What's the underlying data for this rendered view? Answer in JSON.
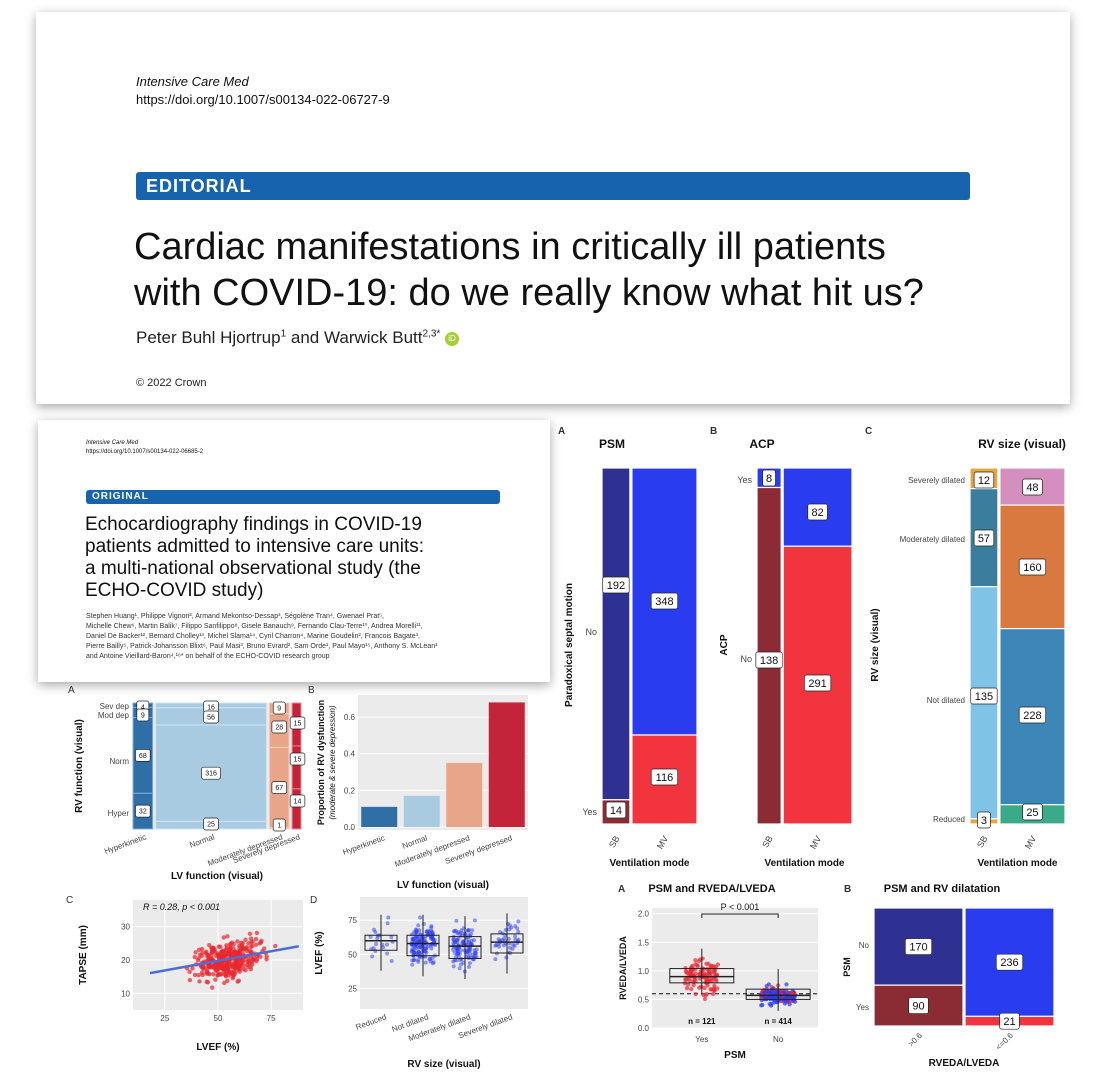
{
  "editorial": {
    "journal": "Intensive Care Med",
    "doi": "https://doi.org/10.1007/s00134-022-06727-9",
    "badge": "EDITORIAL",
    "title_line1": "Cardiac manifestations in critically ill patients",
    "title_line2": "with COVID-19: do we really know what hit us?",
    "author1": "Peter Buhl Hjortrup",
    "author1_sup": "1",
    "and": " and ",
    "author2": "Warwick Butt",
    "author2_sup": "2,3*",
    "copyright": "© 2022 Crown",
    "orcid_icon_text": "iD"
  },
  "original": {
    "journal": "Intensive Care Med",
    "doi": "https://doi.org/10.1007/s00134-022-06685-2",
    "badge": "ORIGINAL",
    "title_line1": "Echocardiography findings in COVID-19",
    "title_line2": "patients admitted to intensive care units:",
    "title_line3": "a multi-national observational study (the",
    "title_line4": "ECHO-COVID study)",
    "authors_line1": "Stephen Huang¹, Philippe Vignon², Armand Mekontso-Dessap³, Ségolène Tran⁴, Gwenael Prat⁵,",
    "authors_line2": "Michelle Chew⁶, Martin Balik⁷, Filippo Sanfilippo⁸, Gisele Banauch⁹, Fernando Clau-Terre¹⁰, Andrea Morelli¹¹,",
    "authors_line3": "Daniel De Backer¹², Bernard Cholley¹³, Michel Slama¹⁴, Cyril Charron⁴, Marine Goudelin², Francois Bagate³,",
    "authors_line4": "Pierre Bailly⁵, Patrick-Johansson Blixt⁶, Paul Masi³, Bruno Evrard², Sam Orde¹, Paul Mayo¹⁵, Anthony S. McLean¹",
    "authors_line5": "and Antoine Vieillard-Baron⁴,¹⁶* on behalf of the ECHO-COVID research group"
  },
  "colors": {
    "dark_blue": "#2e3192",
    "blue": "#2a3cf0",
    "dark_red": "#8b2c35",
    "red": "#f2343f",
    "banner": "#1763ad",
    "light_blue": "#7fc3e6",
    "teal": "#3a7d9c",
    "orange": "#d9793f",
    "pink": "#d48fbe",
    "green": "#3aaa8a",
    "gold": "#e9a53a",
    "steel": "#3d86b8",
    "plot_bg": "#ebebeb"
  },
  "chart_data": [
    {
      "id": "lv-rv-mosaic",
      "type": "mosaic",
      "panel": "A",
      "xlabel": "LV function (visual)",
      "ylabel": "RV function (visual)",
      "categories": [
        "Hyperkinetic",
        "Normal",
        "Moderately depressed",
        "Severely depressed"
      ],
      "y_tick_labels": [
        "Sev dep",
        "Mod dep",
        "Norm",
        "Hyper"
      ],
      "counts": {
        "Hyperkinetic": [
          4,
          9,
          68,
          32
        ],
        "Normal": [
          16,
          56,
          316,
          25
        ],
        "Moderately depressed": [
          9,
          28,
          67,
          1
        ],
        "Severely depressed": [
          15,
          15,
          14,
          0
        ]
      },
      "count_labels": {
        "Hyperkinetic": [
          "4",
          "9",
          "68",
          "32"
        ],
        "Normal": [
          "16",
          "56",
          "316",
          "25"
        ],
        "Moderately depressed": [
          "9",
          "28",
          "67",
          "1"
        ],
        "Severely depressed": [
          "15",
          "15",
          "14"
        ]
      }
    },
    {
      "id": "rv-dysfunction-bar",
      "type": "bar",
      "panel": "B",
      "xlabel": "LV function (visual)",
      "ylabel": "Proportion of RV dysfunction",
      "ylabel2": "(moderate & severe depression)",
      "categories": [
        "Hyperkinetic",
        "Normal",
        "Moderately depressed",
        "Severely depressed"
      ],
      "values": [
        0.11,
        0.17,
        0.35,
        0.68
      ],
      "ylim": [
        0,
        0.7
      ],
      "yticks": [
        "0.0",
        "0.2",
        "0.4",
        "0.6"
      ]
    },
    {
      "id": "tapse-lvef-scatter",
      "type": "scatter",
      "panel": "C",
      "xlabel": "LVEF (%)",
      "ylabel": "TAPSE (mm)",
      "annotation_r": "R = 0.28, ",
      "annotation_p": "p < 0.001",
      "xlim": [
        10,
        90
      ],
      "ylim": [
        5,
        38
      ],
      "xticks": [
        "25",
        "50",
        "75"
      ],
      "yticks": [
        "10",
        "20",
        "30"
      ],
      "fit_line": {
        "intercept": 14.0,
        "slope": 0.115
      },
      "n_points": 360
    },
    {
      "id": "lvef-rvsize-box",
      "type": "box",
      "panel": "D",
      "xlabel": "RV size (visual)",
      "ylabel": "LVEF (%)",
      "categories": [
        "Reduced",
        "Not dilated",
        "Moderately dilated",
        "Severely dilated"
      ],
      "medians": [
        60,
        58,
        56,
        59
      ],
      "q1": [
        53,
        49,
        47,
        51
      ],
      "q3": [
        64,
        64,
        63,
        65
      ],
      "ylim": [
        10,
        92
      ],
      "yticks": [
        "25",
        "50",
        "75"
      ]
    },
    {
      "id": "psm-mosaic",
      "type": "mosaic",
      "panel": "A",
      "title": "PSM",
      "xlabel": "Ventilation mode",
      "ylabel": "Paradoxical septal motion",
      "categories": [
        "SB",
        "MV"
      ],
      "y_tick_labels": [
        "No",
        "Yes"
      ],
      "counts": {
        "SB": {
          "No": 192,
          "Yes": 14
        },
        "MV": {
          "No": 348,
          "Yes": 116
        }
      },
      "count_labels": {
        "SB": [
          "192",
          "14"
        ],
        "MV": [
          "348",
          "116"
        ]
      }
    },
    {
      "id": "acp-mosaic",
      "type": "mosaic",
      "panel": "B",
      "title": "ACP",
      "xlabel": "Ventilation mode",
      "ylabel": "ACP",
      "categories": [
        "SB",
        "MV"
      ],
      "y_tick_labels": [
        "Yes",
        "No"
      ],
      "counts": {
        "SB": {
          "Yes": 8,
          "No": 138
        },
        "MV": {
          "Yes": 82,
          "No": 291
        }
      },
      "count_labels": {
        "SB": [
          "8",
          "138"
        ],
        "MV": [
          "82",
          "291"
        ]
      }
    },
    {
      "id": "rv-size-mosaic",
      "type": "mosaic",
      "panel": "C",
      "title": "RV size (visual)",
      "xlabel": "Ventilation mode",
      "ylabel": "RV size (visual)",
      "categories": [
        "SB",
        "MV"
      ],
      "y_tick_labels": [
        "Severely dilated",
        "Moderately dilated",
        "Not dilated",
        "Reduced"
      ],
      "counts": {
        "SB": {
          "Severely dilated": 12,
          "Moderately dilated": 57,
          "Not dilated": 135,
          "Reduced": 3
        },
        "MV": {
          "Severely dilated": 48,
          "Moderately dilated": 160,
          "Not dilated": 228,
          "Reduced": 25
        }
      },
      "count_labels": {
        "SB": [
          "12",
          "57",
          "135",
          "3"
        ],
        "MV": [
          "48",
          "160",
          "228",
          "25"
        ]
      }
    },
    {
      "id": "rveda-psm-box",
      "type": "box",
      "panel": "A",
      "title": "PSM and RVEDA/LVEDA",
      "xlabel": "PSM",
      "ylabel": "RVEDA/LVEDA",
      "categories": [
        "Yes",
        "No"
      ],
      "n_labels": [
        "n = 121",
        "n = 414"
      ],
      "medians": [
        0.9,
        0.57
      ],
      "q1": [
        0.79,
        0.5
      ],
      "q3": [
        1.04,
        0.68
      ],
      "ylim": [
        0,
        2.1
      ],
      "yticks": [
        "0.0",
        "0.5",
        "1.0",
        "1.5",
        "2.0"
      ],
      "threshold": 0.6,
      "p_label": "P < 0.001"
    },
    {
      "id": "psm-rvdilatation-mosaic",
      "type": "mosaic",
      "panel": "B",
      "title": "PSM and RV dilatation",
      "xlabel": "RVEDA/LVEDA",
      "ylabel": "PSM",
      "categories": [
        ">0.6",
        "<=0.6"
      ],
      "y_tick_labels": [
        "No",
        "Yes"
      ],
      "counts": {
        ">0.6": {
          "No": 170,
          "Yes": 90
        },
        "<=0.6": {
          "No": 236,
          "Yes": 21
        }
      },
      "count_labels": {
        ">0.6": [
          "170",
          "90"
        ],
        "<=0.6": [
          "236",
          "21"
        ]
      }
    }
  ]
}
